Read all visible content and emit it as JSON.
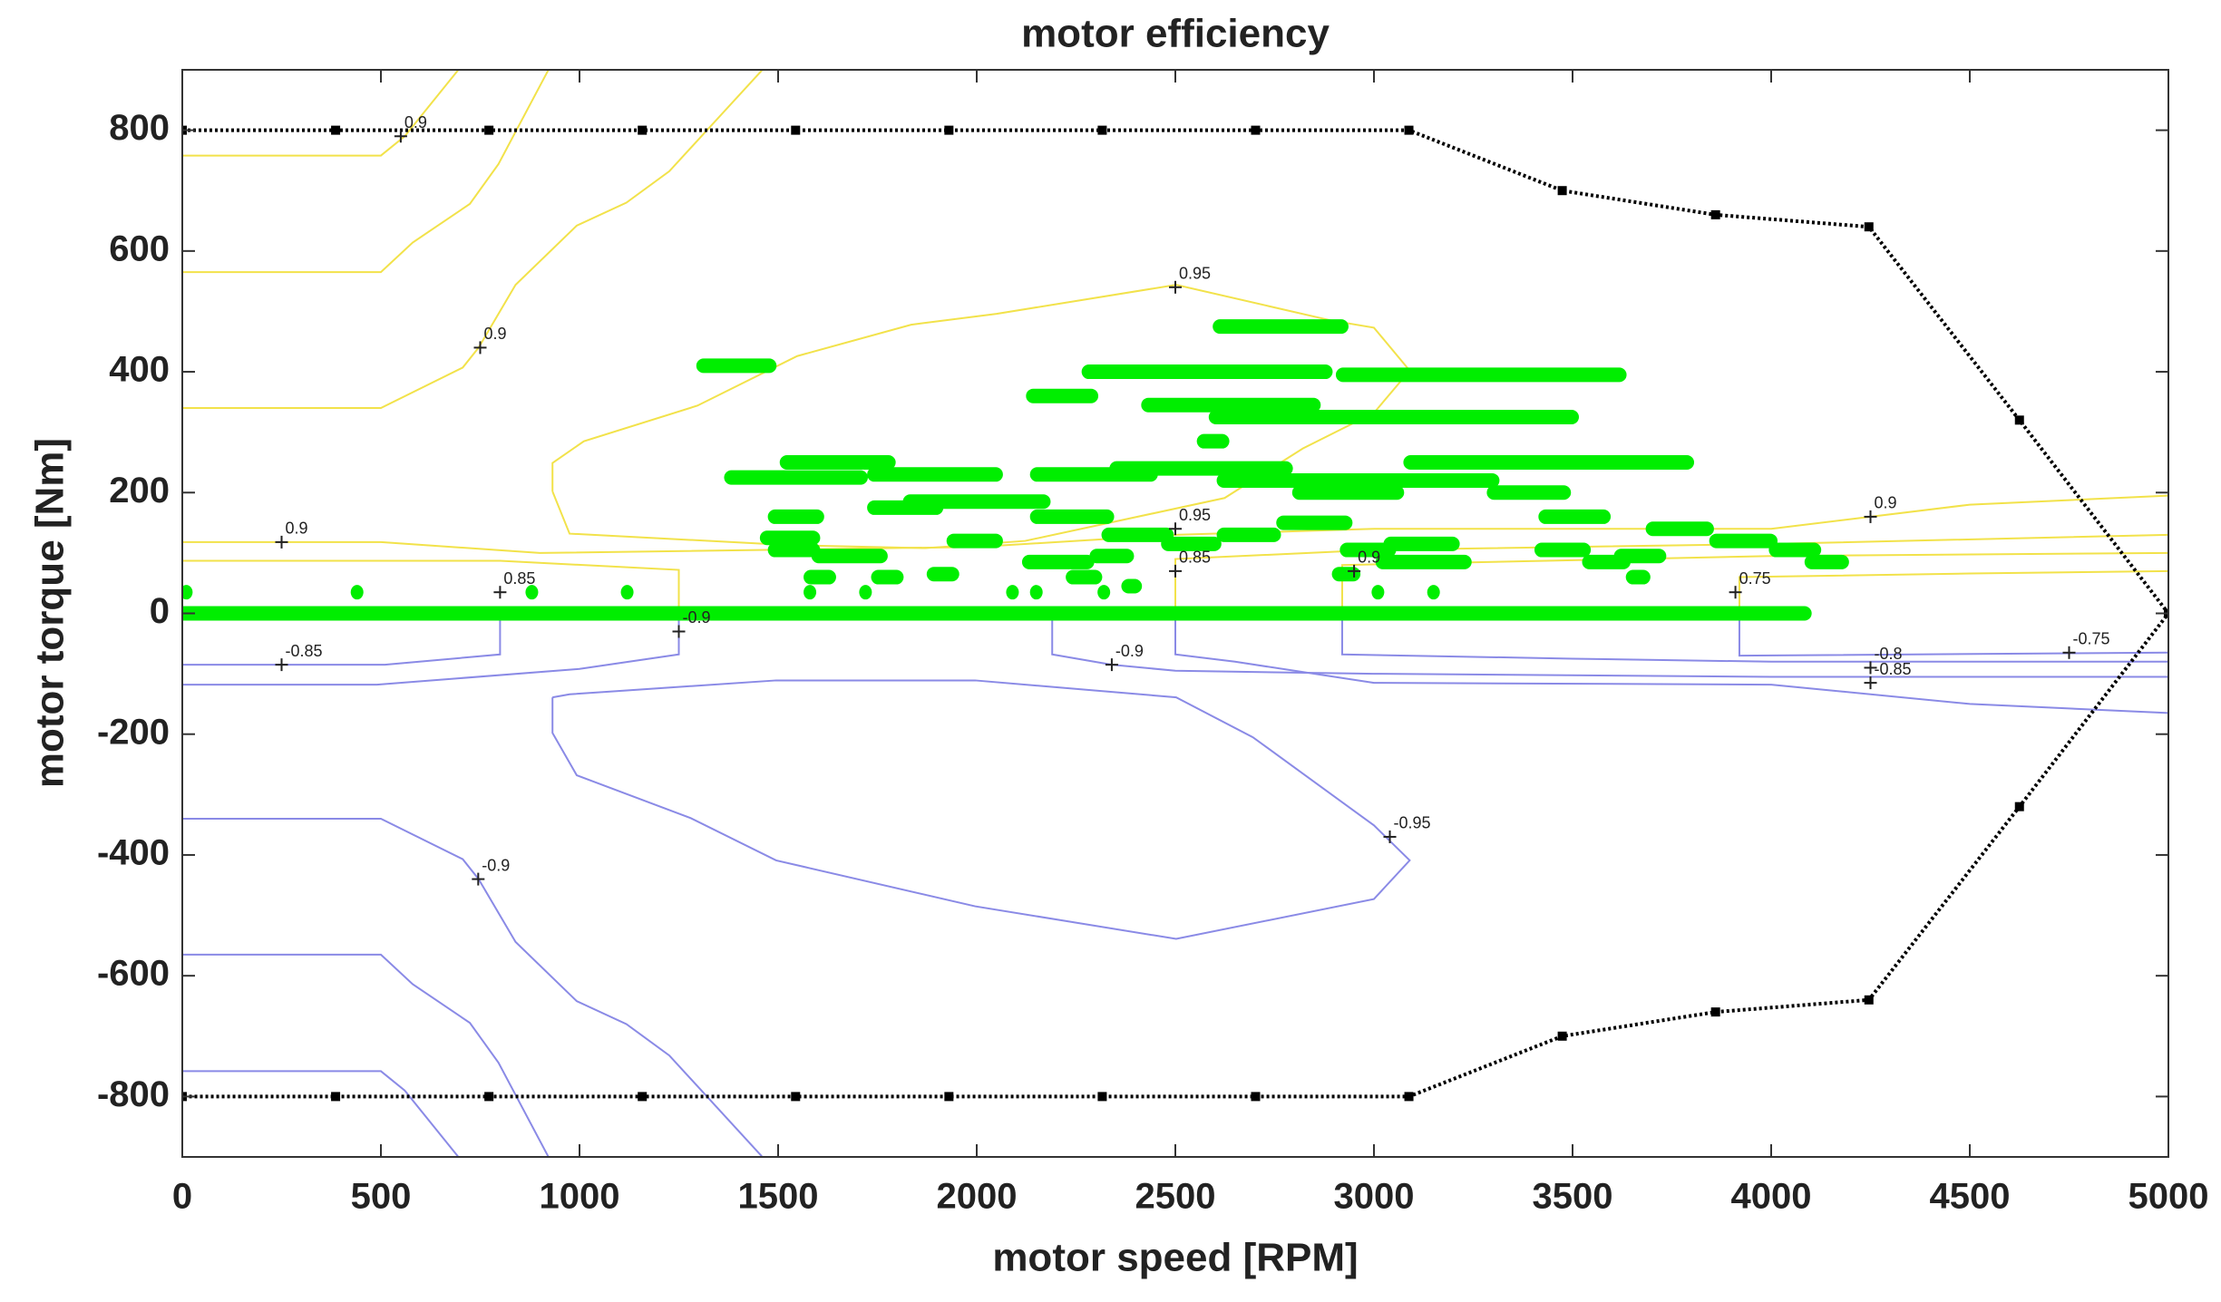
{
  "chart_data": {
    "type": "contour",
    "title": "motor efficiency",
    "x_label": "motor speed [RPM]",
    "y_label": "motor torque [Nm]",
    "xlim": [
      0,
      5000
    ],
    "ylim": [
      -900,
      900
    ],
    "xticks": [
      0,
      500,
      1000,
      1500,
      2000,
      2500,
      3000,
      3500,
      4000,
      4500,
      5000
    ],
    "yticks": [
      -800,
      -600,
      -400,
      -200,
      0,
      200,
      400,
      600,
      800
    ],
    "envelope": {
      "color": "#000000",
      "x": [
        0,
        386,
        772,
        1158,
        1544,
        1930,
        2316,
        2702,
        3088,
        3474,
        3860,
        4246,
        4625,
        5000,
        4625,
        4246,
        3860,
        3474,
        3088,
        2702,
        2316,
        1930,
        1544,
        1158,
        772,
        386,
        0
      ],
      "values": [
        800,
        800,
        800,
        800,
        800,
        800,
        800,
        800,
        800,
        700,
        660,
        640,
        320,
        0,
        -320,
        -640,
        -660,
        -700,
        -800,
        -800,
        -800,
        -800,
        -800,
        -800,
        -800,
        -800,
        -800
      ]
    },
    "contours": [
      {
        "color": "#f2e24a",
        "x": [
          0,
          500,
          560,
          695
        ],
        "values": [
          758,
          758,
          790,
          900
        ]
      },
      {
        "color": "#f2e24a",
        "x": [
          0,
          500,
          580,
          724,
          796,
          921
        ],
        "values": [
          565,
          565,
          614,
          678,
          744,
          899
        ]
      },
      {
        "color": "#f2e24a",
        "x": [
          0,
          500,
          706,
          746,
          839,
          993,
          1118,
          1226,
          1459
        ],
        "values": [
          340,
          340,
          407,
          440,
          544,
          642,
          680,
          732,
          899
        ]
      },
      {
        "color": "#f2e24a",
        "x": [
          932,
          932,
          1011,
          1297,
          1548,
          1835,
          2050,
          2502,
          2892,
          3000,
          3090,
          3000,
          2821,
          2624,
          2122,
          1871,
          1530,
          975,
          932
        ],
        "values": [
          202,
          249,
          285,
          344,
          426,
          478,
          496,
          544,
          485,
          473,
          402,
          332,
          273,
          191,
          120,
          108,
          113,
          132,
          202
        ]
      },
      {
        "color": "#f2e24a",
        "x": [
          0,
          500,
          900,
          2000,
          2500,
          3000,
          4000,
          4500,
          5000
        ],
        "values": [
          118,
          118,
          100,
          110,
          130,
          140,
          140,
          180,
          195
        ]
      },
      {
        "color": "#f2e24a",
        "x": [
          0,
          800,
          1250,
          1250
        ],
        "values": [
          87,
          87,
          72,
          0
        ]
      },
      {
        "color": "#f2e24a",
        "x": [
          2500,
          2500,
          3000,
          4000,
          5000
        ],
        "values": [
          0,
          90,
          105,
          115,
          130
        ]
      },
      {
        "color": "#f2e24a",
        "x": [
          2920,
          2920,
          3500,
          4000,
          5000
        ],
        "values": [
          0,
          80,
          88,
          95,
          100
        ]
      },
      {
        "color": "#f2e24a",
        "x": [
          3920,
          3920,
          4500,
          5000
        ],
        "values": [
          0,
          60,
          66,
          70
        ]
      },
      {
        "color": "#8a8ae6",
        "x": [
          0,
          510,
          800,
          800
        ],
        "values": [
          -85,
          -85,
          -68,
          0
        ]
      },
      {
        "color": "#8a8ae6",
        "x": [
          0,
          490,
          1000,
          1250,
          1250
        ],
        "values": [
          -118,
          -118,
          -92,
          -68,
          0
        ]
      },
      {
        "color": "#8a8ae6",
        "x": [
          2190,
          2190,
          2340,
          2500,
          3000,
          4000,
          5000
        ],
        "values": [
          0,
          -68,
          -85,
          -95,
          -100,
          -105,
          -105
        ]
      },
      {
        "color": "#8a8ae6",
        "x": [
          2500,
          2500,
          2650,
          3000,
          4000,
          4500,
          5000
        ],
        "values": [
          0,
          -68,
          -80,
          -115,
          -118,
          -150,
          -165
        ]
      },
      {
        "color": "#8a8ae6",
        "x": [
          2920,
          2920,
          3500,
          4000,
          5000
        ],
        "values": [
          0,
          -68,
          -75,
          -80,
          -80
        ]
      },
      {
        "color": "#8a8ae6",
        "x": [
          3920,
          3920,
          5000
        ],
        "values": [
          0,
          -70,
          -65
        ]
      },
      {
        "color": "#8a8ae6",
        "x": [
          932,
          932,
          993,
          1280,
          1495,
          1996,
          2502,
          3000,
          3090,
          3000,
          2695,
          2502,
          1996,
          1495,
          975,
          932
        ],
        "values": [
          -139,
          -198,
          -268,
          -339,
          -409,
          -485,
          -539,
          -473,
          -409,
          -351,
          -205,
          -139,
          -111,
          -111,
          -134,
          -139
        ]
      },
      {
        "color": "#8a8ae6",
        "x": [
          0,
          500,
          706,
          746,
          839,
          993,
          1118,
          1226,
          1459
        ],
        "values": [
          -340,
          -340,
          -407,
          -440,
          -544,
          -642,
          -680,
          -732,
          -899
        ]
      },
      {
        "color": "#8a8ae6",
        "x": [
          0,
          500,
          580,
          724,
          796,
          921
        ],
        "values": [
          -565,
          -565,
          -614,
          -678,
          -744,
          -899
        ]
      },
      {
        "color": "#8a8ae6",
        "x": [
          0,
          500,
          560,
          695
        ],
        "values": [
          -758,
          -758,
          -790,
          -900
        ]
      }
    ],
    "operating_points": {
      "color": "#00ee00",
      "x_start": [
        0,
        1310,
        2610,
        2280,
        2920,
        2140,
        2430,
        2600,
        2570,
        1520,
        3090,
        2350,
        1740,
        2150,
        1380,
        2620,
        2810,
        3300,
        1830,
        1740,
        1490,
        2150,
        3430,
        2770,
        3700,
        2620,
        2330,
        1470,
        1940,
        3860,
        2480,
        3040,
        1490,
        2930,
        3420,
        4010,
        1600,
        2300,
        3620,
        2130,
        3540,
        4100,
        3020,
        1890,
        2910,
        1580,
        1750,
        2240,
        3650,
        2380,
        10,
        440,
        880,
        1120,
        1580,
        1720,
        2090,
        2150,
        2320,
        3010,
        3150
      ],
      "x_end": [
        4086,
        1480,
        2920,
        2880,
        3620,
        2290,
        2850,
        3500,
        2620,
        1780,
        3790,
        2780,
        2050,
        2440,
        1710,
        3300,
        3060,
        3480,
        2170,
        1900,
        1600,
        2330,
        3580,
        2930,
        3840,
        2750,
        2480,
        1590,
        2050,
        4000,
        2600,
        3200,
        1590,
        3040,
        3530,
        4110,
        1760,
        2380,
        3720,
        2280,
        3630,
        4180,
        3230,
        1940,
        2950,
        1630,
        1800,
        2300,
        3680,
        2400,
        10,
        440,
        880,
        1120,
        1580,
        1720,
        2090,
        2150,
        2320,
        3010,
        3150
      ],
      "values": [
        0,
        410,
        475,
        400,
        395,
        360,
        345,
        325,
        285,
        250,
        250,
        240,
        230,
        230,
        225,
        220,
        200,
        200,
        185,
        175,
        160,
        160,
        160,
        150,
        140,
        130,
        130,
        125,
        120,
        120,
        115,
        115,
        105,
        105,
        105,
        105,
        95,
        95,
        95,
        85,
        85,
        85,
        85,
        65,
        65,
        60,
        60,
        60,
        60,
        45,
        35,
        35,
        35,
        35,
        35,
        35,
        35,
        35,
        35,
        35,
        35
      ]
    },
    "contour_labels": [
      {
        "x": 550,
        "y": 790,
        "level": 0.9
      },
      {
        "x": 750,
        "y": 440,
        "level": 0.9
      },
      {
        "x": 2500,
        "y": 540,
        "level": 0.95
      },
      {
        "x": 250,
        "y": 118,
        "level": 0.9
      },
      {
        "x": 800,
        "y": 35,
        "level": 0.85
      },
      {
        "x": 2500,
        "y": 140,
        "level": 0.95
      },
      {
        "x": 2500,
        "y": 70,
        "level": 0.85
      },
      {
        "x": 2950,
        "y": 70,
        "level": 0.9
      },
      {
        "x": 3910,
        "y": 35,
        "level": 0.75
      },
      {
        "x": 4250,
        "y": 160,
        "level": 0.9
      },
      {
        "x": 1250,
        "y": -30,
        "level": -0.9
      },
      {
        "x": 250,
        "y": -85,
        "level": -0.85
      },
      {
        "x": 2340,
        "y": -85,
        "level": -0.9
      },
      {
        "x": 4250,
        "y": -90,
        "level": -0.8
      },
      {
        "x": 4250,
        "y": -115,
        "level": -0.85
      },
      {
        "x": 4750,
        "y": -65,
        "level": -0.75
      },
      {
        "x": 3040,
        "y": -370,
        "level": -0.95
      },
      {
        "x": 745,
        "y": -440,
        "level": -0.9
      }
    ]
  }
}
